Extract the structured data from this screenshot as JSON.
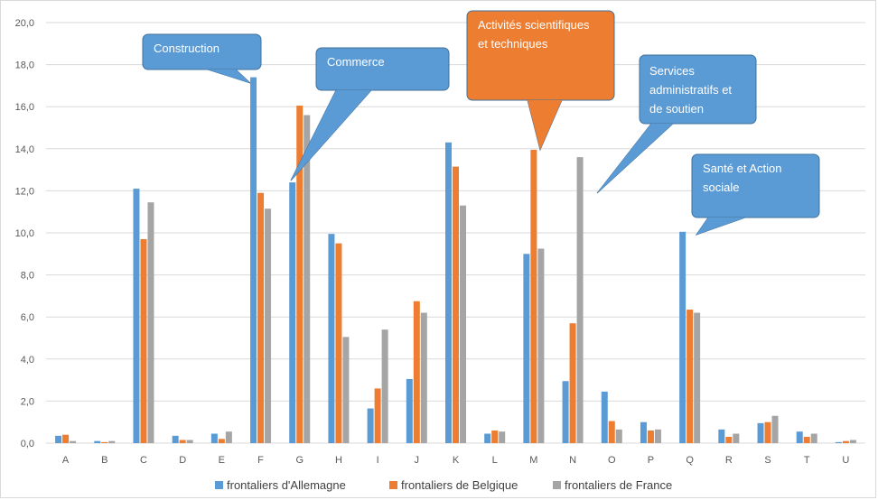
{
  "chart_data": {
    "type": "bar",
    "title": "",
    "xlabel": "",
    "ylabel": "",
    "ylim": [
      0,
      20
    ],
    "yticks": [
      0,
      2,
      4,
      6,
      8,
      10,
      12,
      14,
      16,
      18,
      20
    ],
    "ytick_labels": [
      "0,0",
      "2,0",
      "4,0",
      "6,0",
      "8,0",
      "10,0",
      "12,0",
      "14,0",
      "16,0",
      "18,0",
      "20,0"
    ],
    "grid": true,
    "legend_position": "bottom",
    "categories": [
      "A",
      "B",
      "C",
      "D",
      "E",
      "F",
      "G",
      "H",
      "I",
      "J",
      "K",
      "L",
      "M",
      "N",
      "O",
      "P",
      "Q",
      "R",
      "S",
      "T",
      "U"
    ],
    "series": [
      {
        "name": "frontaliers d'Allemagne",
        "color": "#5b9bd5",
        "values": [
          0.35,
          0.1,
          12.1,
          0.35,
          0.45,
          17.4,
          12.4,
          9.95,
          1.65,
          3.05,
          14.3,
          0.45,
          9.0,
          2.95,
          2.45,
          1.0,
          10.05,
          0.65,
          0.95,
          0.55,
          0.05
        ]
      },
      {
        "name": "frontaliers de Belgique",
        "color": "#ed7d31",
        "values": [
          0.4,
          0.05,
          9.7,
          0.15,
          0.2,
          11.9,
          16.05,
          9.5,
          2.6,
          6.75,
          13.15,
          0.6,
          13.95,
          5.7,
          1.05,
          0.6,
          6.35,
          0.3,
          1.0,
          0.3,
          0.1
        ]
      },
      {
        "name": "frontaliers de  France",
        "color": "#a5a5a5",
        "values": [
          0.1,
          0.1,
          11.45,
          0.15,
          0.55,
          11.15,
          15.6,
          5.05,
          5.4,
          6.2,
          11.3,
          0.55,
          9.25,
          13.6,
          0.65,
          0.65,
          6.2,
          0.45,
          1.3,
          0.45,
          0.15
        ]
      }
    ],
    "annotations": [
      {
        "lines": [
          "Construction"
        ],
        "color": "#5b9bd5"
      },
      {
        "lines": [
          "Commerce"
        ],
        "color": "#5b9bd5"
      },
      {
        "lines": [
          "Activités scientifiques",
          "et techniques"
        ],
        "color": "#ed7d31"
      },
      {
        "lines": [
          "Services",
          "administratifs et",
          "de soutien"
        ],
        "color": "#5b9bd5"
      },
      {
        "lines": [
          "Santé et Action",
          "sociale"
        ],
        "color": "#5b9bd5"
      }
    ]
  }
}
